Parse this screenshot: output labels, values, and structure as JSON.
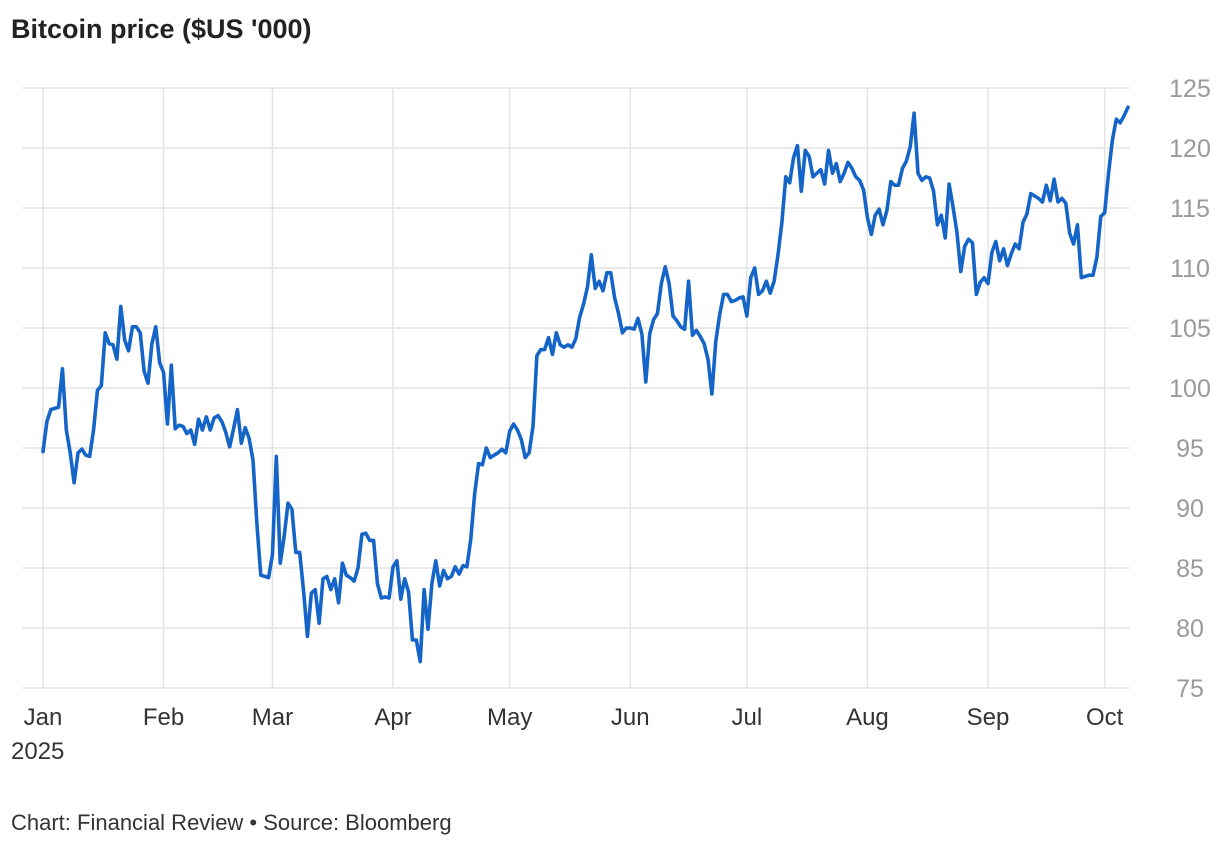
{
  "title": "Bitcoin price ($US '000)",
  "footer": "Chart: Financial Review • Source: Bloomberg",
  "colors": {
    "line": "#1565c8",
    "grid": "#e3e3e3",
    "axis_text": "#9a9a9a"
  },
  "chart_data": {
    "type": "line",
    "title": "Bitcoin price ($US '000)",
    "xlabel": "",
    "ylabel": "",
    "ylim": [
      75,
      125
    ],
    "y_ticks": [
      "75",
      "80",
      "85",
      "90",
      "95",
      "100",
      "105",
      "110",
      "115",
      "120",
      "125"
    ],
    "y_axis_side": "right",
    "grid": true,
    "x_ticks": [
      {
        "label": "Jan",
        "sub": "2025",
        "x": 1
      },
      {
        "label": "Feb",
        "sub": "",
        "x": 32
      },
      {
        "label": "Mar",
        "sub": "",
        "x": 60
      },
      {
        "label": "Apr",
        "sub": "",
        "x": 91
      },
      {
        "label": "May",
        "sub": "",
        "x": 121
      },
      {
        "label": "Jun",
        "sub": "",
        "x": 152
      },
      {
        "label": "Jul",
        "sub": "",
        "x": 182
      },
      {
        "label": "Aug",
        "sub": "",
        "x": 213
      },
      {
        "label": "Sep",
        "sub": "",
        "x": 244
      },
      {
        "label": "Oct",
        "sub": "",
        "x": 274
      }
    ],
    "x_note": "x = day of 2025 (1 = 1 Jan)",
    "xlim": [
      1,
      280
    ],
    "series": [
      {
        "values": [
          [
            1,
            94.7
          ],
          [
            2,
            97.2
          ],
          [
            3,
            98.2
          ],
          [
            4,
            98.3
          ],
          [
            5,
            98.4
          ],
          [
            6,
            101.6
          ],
          [
            7,
            96.5
          ],
          [
            8,
            94.6
          ],
          [
            9,
            92.1
          ],
          [
            10,
            94.6
          ],
          [
            11,
            94.9
          ],
          [
            12,
            94.4
          ],
          [
            13,
            94.3
          ],
          [
            14,
            96.5
          ],
          [
            15,
            99.8
          ],
          [
            16,
            100.2
          ],
          [
            17,
            104.6
          ],
          [
            18,
            103.7
          ],
          [
            19,
            103.6
          ],
          [
            20,
            102.4
          ],
          [
            21,
            106.8
          ],
          [
            22,
            104.0
          ],
          [
            23,
            103.1
          ],
          [
            24,
            105.1
          ],
          [
            25,
            105.1
          ],
          [
            26,
            104.6
          ],
          [
            27,
            101.4
          ],
          [
            28,
            100.4
          ],
          [
            29,
            103.7
          ],
          [
            30,
            105.1
          ],
          [
            31,
            102.1
          ],
          [
            32,
            101.3
          ],
          [
            33,
            97.0
          ],
          [
            34,
            101.9
          ],
          [
            35,
            96.6
          ],
          [
            36,
            96.9
          ],
          [
            37,
            96.8
          ],
          [
            38,
            96.2
          ],
          [
            39,
            96.5
          ],
          [
            40,
            95.3
          ],
          [
            41,
            97.4
          ],
          [
            42,
            96.5
          ],
          [
            43,
            97.6
          ],
          [
            44,
            96.5
          ],
          [
            45,
            97.5
          ],
          [
            46,
            97.7
          ],
          [
            47,
            97.2
          ],
          [
            48,
            96.3
          ],
          [
            49,
            95.1
          ],
          [
            50,
            96.6
          ],
          [
            51,
            98.2
          ],
          [
            52,
            95.4
          ],
          [
            53,
            96.7
          ],
          [
            54,
            95.8
          ],
          [
            55,
            94.0
          ],
          [
            56,
            88.7
          ],
          [
            57,
            84.4
          ],
          [
            58,
            84.3
          ],
          [
            59,
            84.2
          ],
          [
            60,
            86.1
          ],
          [
            61,
            94.3
          ],
          [
            62,
            85.4
          ],
          [
            63,
            87.6
          ],
          [
            64,
            90.4
          ],
          [
            65,
            89.9
          ],
          [
            66,
            86.3
          ],
          [
            67,
            86.3
          ],
          [
            68,
            83.1
          ],
          [
            69,
            79.3
          ],
          [
            70,
            82.9
          ],
          [
            71,
            83.2
          ],
          [
            72,
            80.4
          ],
          [
            73,
            84.1
          ],
          [
            74,
            84.3
          ],
          [
            75,
            83.2
          ],
          [
            76,
            84.1
          ],
          [
            77,
            82.1
          ],
          [
            78,
            85.4
          ],
          [
            79,
            84.4
          ],
          [
            80,
            84.2
          ],
          [
            81,
            83.9
          ],
          [
            82,
            85.0
          ],
          [
            83,
            87.8
          ],
          [
            84,
            87.9
          ],
          [
            85,
            87.3
          ],
          [
            86,
            87.3
          ],
          [
            87,
            83.7
          ],
          [
            88,
            82.5
          ],
          [
            89,
            82.6
          ],
          [
            90,
            82.5
          ],
          [
            91,
            85.1
          ],
          [
            92,
            85.6
          ],
          [
            93,
            82.4
          ],
          [
            94,
            84.1
          ],
          [
            95,
            83.0
          ],
          [
            96,
            79.0
          ],
          [
            97,
            79.0
          ],
          [
            98,
            77.2
          ],
          [
            99,
            83.2
          ],
          [
            100,
            79.9
          ],
          [
            101,
            83.7
          ],
          [
            102,
            85.6
          ],
          [
            103,
            83.5
          ],
          [
            104,
            84.8
          ],
          [
            105,
            84.1
          ],
          [
            106,
            84.3
          ],
          [
            107,
            85.1
          ],
          [
            108,
            84.5
          ],
          [
            109,
            85.2
          ],
          [
            110,
            85.1
          ],
          [
            111,
            87.4
          ],
          [
            112,
            91.2
          ],
          [
            113,
            93.7
          ],
          [
            114,
            93.6
          ],
          [
            115,
            95.0
          ],
          [
            116,
            94.2
          ],
          [
            117,
            94.4
          ],
          [
            118,
            94.6
          ],
          [
            119,
            94.9
          ],
          [
            120,
            94.6
          ],
          [
            121,
            96.4
          ],
          [
            122,
            97.0
          ],
          [
            123,
            96.5
          ],
          [
            124,
            95.7
          ],
          [
            125,
            94.2
          ],
          [
            126,
            94.6
          ],
          [
            127,
            96.8
          ],
          [
            128,
            102.7
          ],
          [
            129,
            103.2
          ],
          [
            130,
            103.2
          ],
          [
            131,
            104.2
          ],
          [
            132,
            102.8
          ],
          [
            133,
            104.6
          ],
          [
            134,
            103.6
          ],
          [
            135,
            103.4
          ],
          [
            136,
            103.6
          ],
          [
            137,
            103.4
          ],
          [
            138,
            104.1
          ],
          [
            139,
            105.9
          ],
          [
            140,
            107.0
          ],
          [
            141,
            108.4
          ],
          [
            142,
            111.1
          ],
          [
            143,
            108.3
          ],
          [
            144,
            108.9
          ],
          [
            145,
            108.1
          ],
          [
            146,
            109.6
          ],
          [
            147,
            109.6
          ],
          [
            148,
            107.5
          ],
          [
            149,
            106.2
          ],
          [
            150,
            104.6
          ],
          [
            151,
            105.0
          ],
          [
            152,
            105.0
          ],
          [
            153,
            104.9
          ],
          [
            154,
            105.8
          ],
          [
            155,
            104.5
          ],
          [
            156,
            100.5
          ],
          [
            157,
            104.5
          ],
          [
            158,
            105.7
          ],
          [
            159,
            106.2
          ],
          [
            160,
            108.7
          ],
          [
            161,
            110.1
          ],
          [
            162,
            108.7
          ],
          [
            163,
            106.0
          ],
          [
            164,
            105.6
          ],
          [
            165,
            105.1
          ],
          [
            166,
            104.9
          ],
          [
            167,
            108.9
          ],
          [
            168,
            104.4
          ],
          [
            169,
            104.8
          ],
          [
            170,
            104.3
          ],
          [
            171,
            103.7
          ],
          [
            172,
            102.4
          ],
          [
            173,
            99.5
          ],
          [
            174,
            103.9
          ],
          [
            175,
            106.1
          ],
          [
            176,
            107.8
          ],
          [
            177,
            107.8
          ],
          [
            178,
            107.2
          ],
          [
            179,
            107.3
          ],
          [
            180,
            107.5
          ],
          [
            181,
            107.6
          ],
          [
            182,
            106.0
          ],
          [
            183,
            109.2
          ],
          [
            184,
            110.0
          ],
          [
            185,
            107.8
          ],
          [
            186,
            108.1
          ],
          [
            187,
            108.9
          ],
          [
            188,
            107.9
          ],
          [
            189,
            108.9
          ],
          [
            190,
            111.1
          ],
          [
            191,
            113.8
          ],
          [
            192,
            117.6
          ],
          [
            193,
            117.1
          ],
          [
            194,
            119.2
          ],
          [
            195,
            120.2
          ],
          [
            196,
            116.4
          ],
          [
            197,
            119.8
          ],
          [
            198,
            119.3
          ],
          [
            199,
            117.6
          ],
          [
            200,
            117.9
          ],
          [
            201,
            118.2
          ],
          [
            202,
            117.0
          ],
          [
            203,
            119.8
          ],
          [
            204,
            117.9
          ],
          [
            205,
            118.7
          ],
          [
            206,
            117.2
          ],
          [
            207,
            117.9
          ],
          [
            208,
            118.8
          ],
          [
            209,
            118.3
          ],
          [
            210,
            117.6
          ],
          [
            211,
            117.3
          ],
          [
            212,
            116.5
          ],
          [
            213,
            114.2
          ],
          [
            214,
            112.8
          ],
          [
            215,
            114.4
          ],
          [
            216,
            114.9
          ],
          [
            217,
            113.6
          ],
          [
            218,
            114.8
          ],
          [
            219,
            117.2
          ],
          [
            220,
            116.9
          ],
          [
            221,
            116.9
          ],
          [
            222,
            118.3
          ],
          [
            223,
            118.9
          ],
          [
            224,
            120.1
          ],
          [
            225,
            122.9
          ],
          [
            226,
            117.9
          ],
          [
            227,
            117.3
          ],
          [
            228,
            117.6
          ],
          [
            229,
            117.5
          ],
          [
            230,
            116.4
          ],
          [
            231,
            113.6
          ],
          [
            232,
            114.4
          ],
          [
            233,
            112.5
          ],
          [
            234,
            117.0
          ],
          [
            235,
            115.1
          ],
          [
            236,
            113.0
          ],
          [
            237,
            109.7
          ],
          [
            238,
            111.8
          ],
          [
            239,
            112.4
          ],
          [
            240,
            112.1
          ],
          [
            241,
            107.8
          ],
          [
            242,
            108.8
          ],
          [
            243,
            109.2
          ],
          [
            244,
            108.7
          ],
          [
            245,
            111.3
          ],
          [
            246,
            112.2
          ],
          [
            247,
            110.6
          ],
          [
            248,
            111.6
          ],
          [
            249,
            110.2
          ],
          [
            250,
            111.2
          ],
          [
            251,
            112.0
          ],
          [
            252,
            111.6
          ],
          [
            253,
            113.8
          ],
          [
            254,
            114.5
          ],
          [
            255,
            116.2
          ],
          [
            256,
            116.0
          ],
          [
            257,
            115.8
          ],
          [
            258,
            115.5
          ],
          [
            259,
            116.9
          ],
          [
            260,
            115.6
          ],
          [
            261,
            117.4
          ],
          [
            262,
            115.5
          ],
          [
            263,
            115.8
          ],
          [
            264,
            115.4
          ],
          [
            265,
            112.9
          ],
          [
            266,
            112.0
          ],
          [
            267,
            113.6
          ],
          [
            268,
            109.2
          ],
          [
            269,
            109.3
          ],
          [
            270,
            109.4
          ],
          [
            271,
            109.4
          ],
          [
            272,
            110.9
          ],
          [
            273,
            114.3
          ],
          [
            274,
            114.6
          ],
          [
            275,
            117.9
          ],
          [
            276,
            120.7
          ],
          [
            277,
            122.4
          ],
          [
            278,
            122.1
          ],
          [
            279,
            122.7
          ],
          [
            280,
            123.4
          ]
        ]
      }
    ]
  }
}
